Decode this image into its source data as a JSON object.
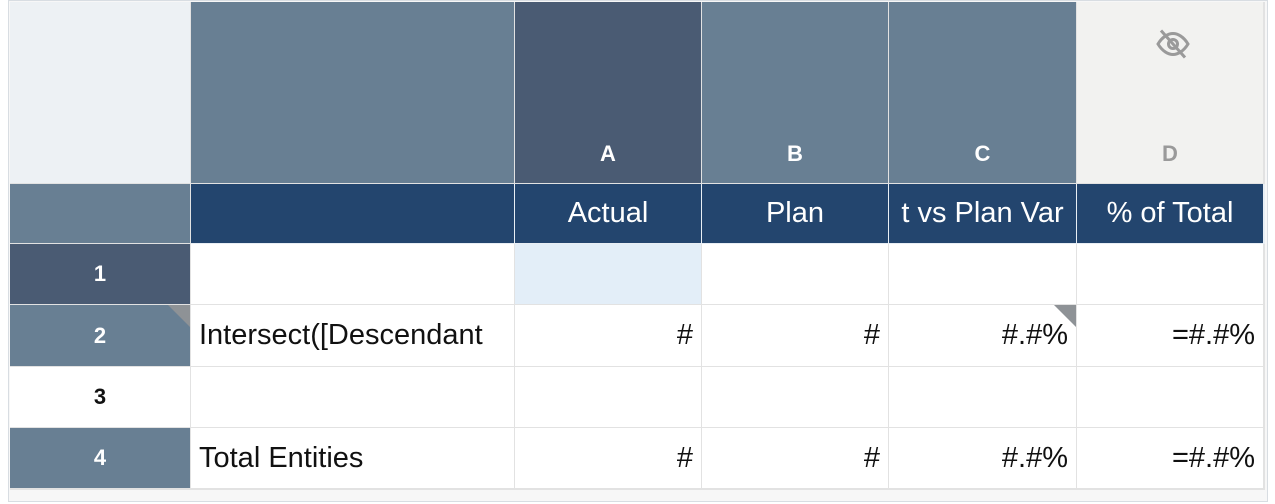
{
  "columns": [
    {
      "letter": "A",
      "header": "Actual"
    },
    {
      "letter": "B",
      "header": "Plan"
    },
    {
      "letter": "C",
      "header": "t vs Plan Var"
    },
    {
      "letter": "D",
      "header": "% of Total",
      "hidden_icon": "eye-slash-icon"
    }
  ],
  "rows": [
    {
      "num": "1",
      "label": "",
      "cells": [
        "",
        "",
        "",
        ""
      ]
    },
    {
      "num": "2",
      "label": "Intersect([Descendant",
      "cells": [
        "#",
        "#",
        "#.#%",
        "=#.#%"
      ]
    },
    {
      "num": "3",
      "label": "",
      "cells": [
        "",
        "",
        "",
        ""
      ]
    },
    {
      "num": "4",
      "label": "Total Entities",
      "cells": [
        "#",
        "#",
        "#.#%",
        "=#.#%"
      ]
    }
  ],
  "colors": {
    "header_dark": "#23456e",
    "col_header": "#687f93",
    "col_selected": "#4a5b73",
    "selected_cell": "#e3eef8"
  }
}
